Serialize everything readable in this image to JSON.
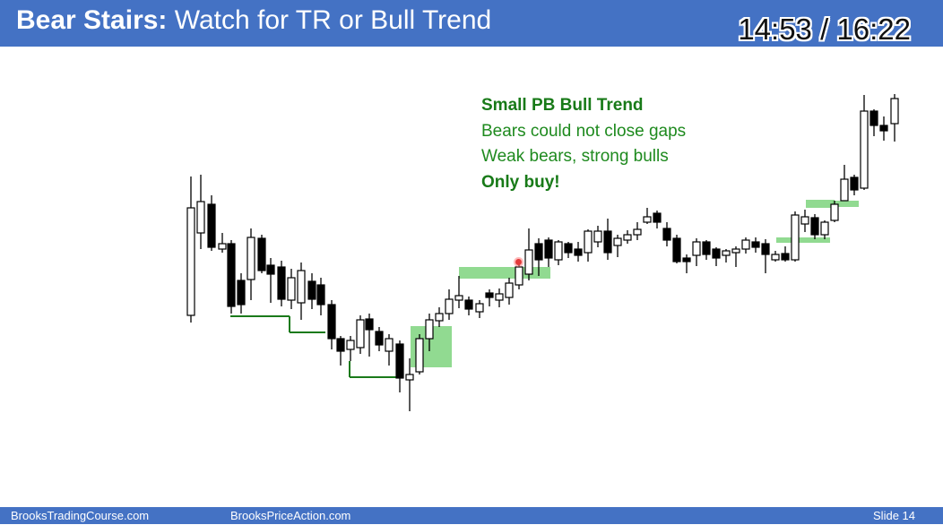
{
  "slide": {
    "title_bold": "Bear Stairs:",
    "title_rest": "Watch for TR or Bull Trend",
    "timer": "14:53 / 16:22"
  },
  "annotations": {
    "line1": "Small PB Bull Trend",
    "line2": "Bears could not close gaps",
    "line3": "Weak bears, strong bulls",
    "line4": "Only buy!"
  },
  "footer": {
    "left": "BrooksTradingCourse.com",
    "center": "BrooksPriceAction.com",
    "right": "Slide 14"
  },
  "colors": {
    "header_bg": "#4472c4",
    "annotation_green": "#1e8a1e",
    "highlight_green": "#7ed47e",
    "stair_line": "#1a7a1a",
    "cursor_red": "#e23b3b"
  }
}
